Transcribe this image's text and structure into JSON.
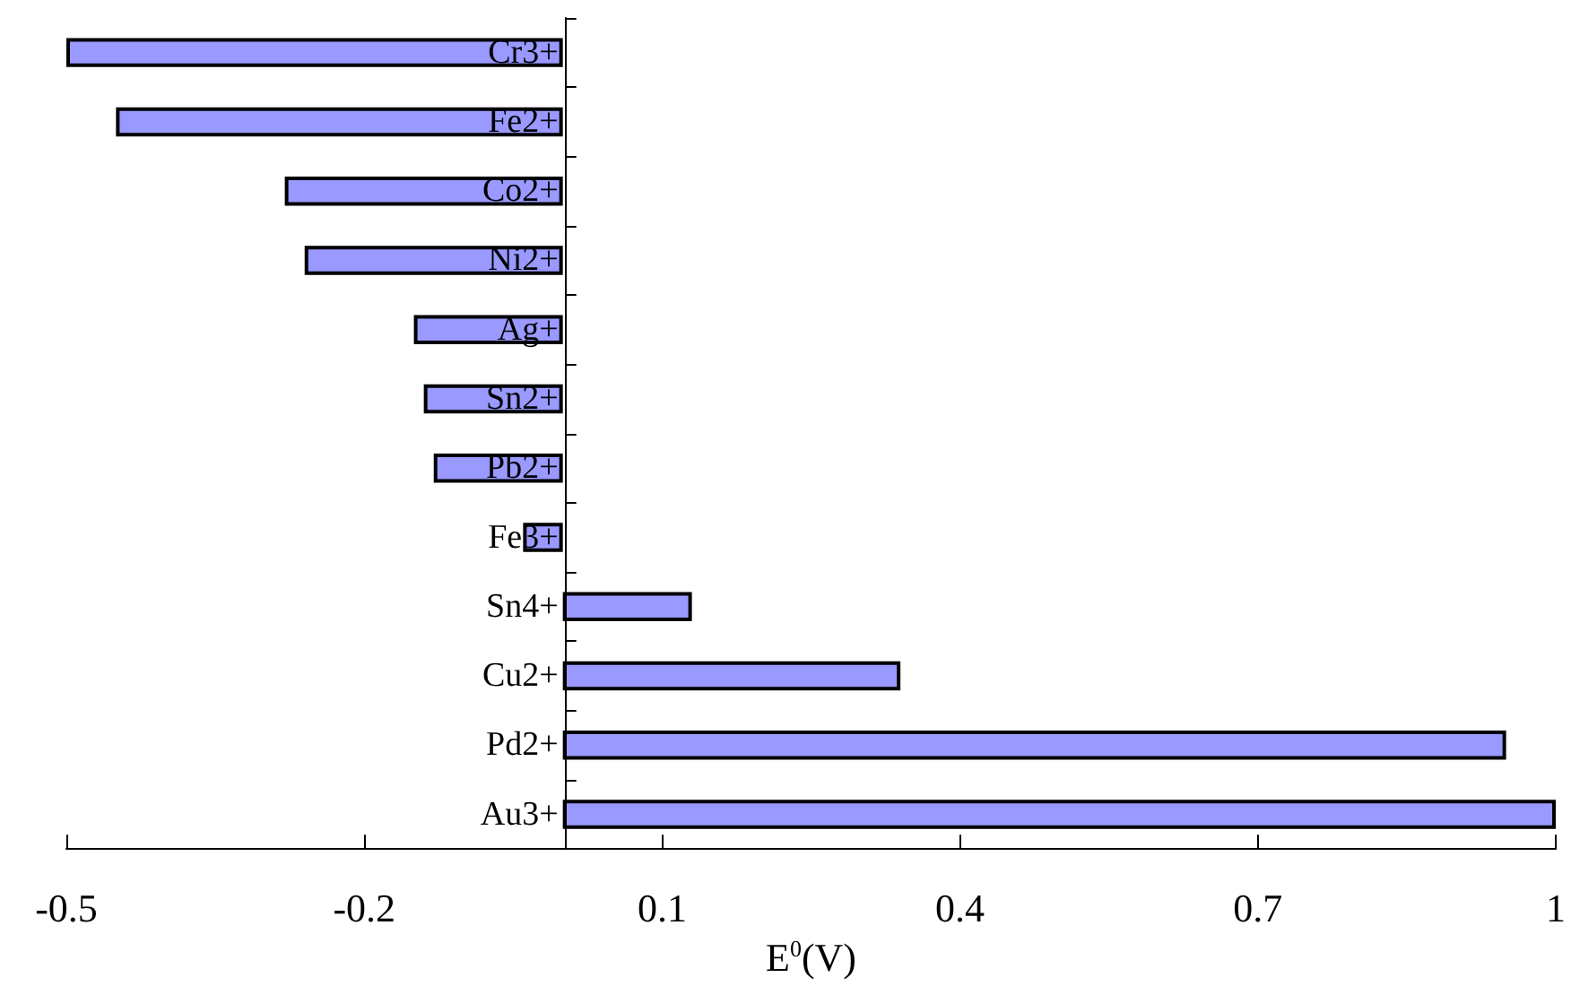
{
  "chart_data": {
    "type": "bar",
    "orientation": "horizontal",
    "xlabel": "E$^{0}$(V)",
    "categories": [
      "Cr3+",
      "Fe2+",
      "Co2+",
      "Ni2+",
      "Ag+",
      "Sn2+",
      "Pb2+",
      "Fe3+",
      "Sn4+",
      "Cu2+",
      "Pd2+",
      "Au3+"
    ],
    "values": [
      -0.5,
      -0.45,
      -0.28,
      -0.26,
      -0.15,
      -0.14,
      -0.13,
      -0.04,
      0.13,
      0.34,
      0.95,
      1.0
    ],
    "color": "#9999ff",
    "xlim": [
      -0.5,
      1
    ],
    "xticks": [
      -0.5,
      -0.2,
      0.1,
      0.4,
      0.7,
      1
    ]
  }
}
